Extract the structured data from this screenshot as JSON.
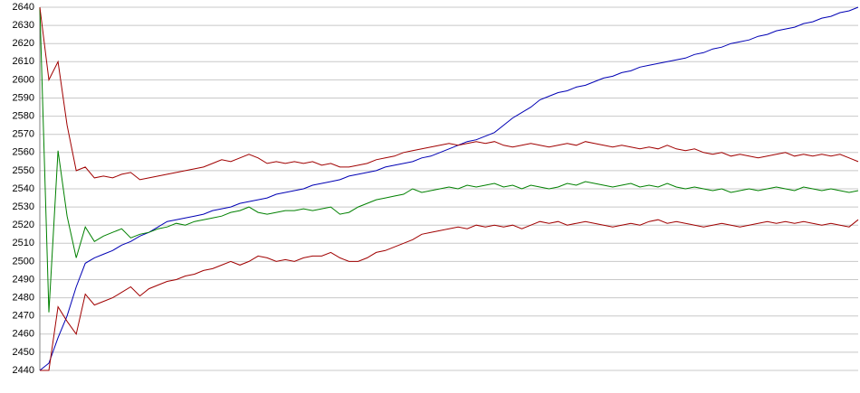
{
  "chart_data": {
    "type": "line",
    "ylim": [
      2440,
      2640
    ],
    "yticks": [
      2440,
      2450,
      2460,
      2470,
      2480,
      2490,
      2500,
      2510,
      2520,
      2530,
      2540,
      2550,
      2560,
      2570,
      2580,
      2590,
      2600,
      2610,
      2620,
      2630,
      2640
    ],
    "grid": true,
    "series": [
      {
        "color": "#0000b4",
        "values": [
          2440,
          2444,
          2458,
          2470,
          2486,
          2499,
          2502,
          2504,
          2506,
          2509,
          2511,
          2514,
          2516,
          2519,
          2522,
          2523,
          2524,
          2525,
          2526,
          2528,
          2529,
          2530,
          2532,
          2533,
          2534,
          2535,
          2537,
          2538,
          2539,
          2540,
          2542,
          2543,
          2544,
          2545,
          2547,
          2548,
          2549,
          2550,
          2552,
          2553,
          2554,
          2555,
          2557,
          2558,
          2560,
          2562,
          2564,
          2566,
          2567,
          2569,
          2571,
          2575,
          2579,
          2582,
          2585,
          2589,
          2591,
          2593,
          2594,
          2596,
          2597,
          2599,
          2601,
          2602,
          2604,
          2605,
          2607,
          2608,
          2609,
          2610,
          2611,
          2612,
          2614,
          2615,
          2617,
          2618,
          2620,
          2621,
          2622,
          2624,
          2625,
          2627,
          2628,
          2629,
          2631,
          2632,
          2634,
          2635,
          2637,
          2638,
          2640
        ]
      },
      {
        "color": "#008000",
        "values": [
          2640,
          2472,
          2561,
          2525,
          2502,
          2519,
          2511,
          2514,
          2516,
          2518,
          2513,
          2515,
          2516,
          2518,
          2519,
          2521,
          2520,
          2522,
          2523,
          2524,
          2525,
          2527,
          2528,
          2530,
          2527,
          2526,
          2527,
          2528,
          2528,
          2529,
          2528,
          2529,
          2530,
          2526,
          2527,
          2530,
          2532,
          2534,
          2535,
          2536,
          2537,
          2540,
          2538,
          2539,
          2540,
          2541,
          2540,
          2542,
          2541,
          2542,
          2543,
          2541,
          2542,
          2540,
          2542,
          2541,
          2540,
          2541,
          2543,
          2542,
          2544,
          2543,
          2542,
          2541,
          2542,
          2543,
          2541,
          2542,
          2541,
          2543,
          2541,
          2540,
          2541,
          2540,
          2539,
          2540,
          2538,
          2539,
          2540,
          2539,
          2540,
          2541,
          2540,
          2539,
          2541,
          2540,
          2539,
          2540,
          2539,
          2538,
          2539
        ]
      },
      {
        "color": "#a00000",
        "values": [
          2640,
          2600,
          2610,
          2575,
          2550,
          2552,
          2546,
          2547,
          2546,
          2548,
          2549,
          2545,
          2546,
          2547,
          2548,
          2549,
          2550,
          2551,
          2552,
          2554,
          2556,
          2555,
          2557,
          2559,
          2557,
          2554,
          2555,
          2554,
          2555,
          2554,
          2555,
          2553,
          2554,
          2552,
          2552,
          2553,
          2554,
          2556,
          2557,
          2558,
          2560,
          2561,
          2562,
          2563,
          2564,
          2565,
          2564,
          2565,
          2566,
          2565,
          2566,
          2564,
          2563,
          2564,
          2565,
          2564,
          2563,
          2564,
          2565,
          2564,
          2566,
          2565,
          2564,
          2563,
          2564,
          2563,
          2562,
          2563,
          2562,
          2564,
          2562,
          2561,
          2562,
          2560,
          2559,
          2560,
          2558,
          2559,
          2558,
          2557,
          2558,
          2559,
          2560,
          2558,
          2559,
          2558,
          2559,
          2558,
          2559,
          2557,
          2555
        ]
      },
      {
        "color": "#a00000",
        "values": [
          2440,
          2440,
          2475,
          2467,
          2460,
          2482,
          2476,
          2478,
          2480,
          2483,
          2486,
          2481,
          2485,
          2487,
          2489,
          2490,
          2492,
          2493,
          2495,
          2496,
          2498,
          2500,
          2498,
          2500,
          2503,
          2502,
          2500,
          2501,
          2500,
          2502,
          2503,
          2503,
          2505,
          2502,
          2500,
          2500,
          2502,
          2505,
          2506,
          2508,
          2510,
          2512,
          2515,
          2516,
          2517,
          2518,
          2519,
          2518,
          2520,
          2519,
          2520,
          2519,
          2520,
          2518,
          2520,
          2522,
          2521,
          2522,
          2520,
          2521,
          2522,
          2521,
          2520,
          2519,
          2520,
          2521,
          2520,
          2522,
          2523,
          2521,
          2522,
          2521,
          2520,
          2519,
          2520,
          2521,
          2520,
          2519,
          2520,
          2521,
          2522,
          2521,
          2522,
          2521,
          2522,
          2521,
          2520,
          2521,
          2520,
          2519,
          2523
        ]
      }
    ]
  }
}
